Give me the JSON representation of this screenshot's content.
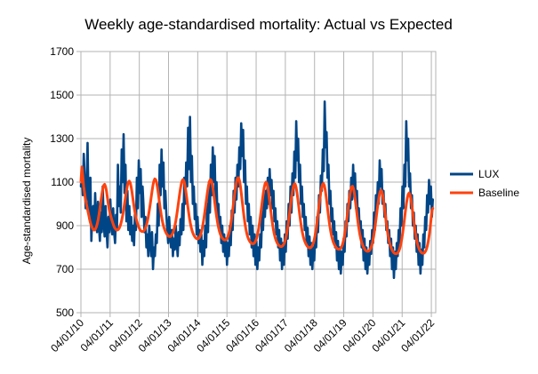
{
  "chart_data": {
    "type": "line",
    "title": "Weekly age-standardised mortality: Actual vs Expected",
    "xlabel": "",
    "ylabel": "Age-standardised mortality",
    "ylim": [
      500,
      1700
    ],
    "yticks": [
      500,
      700,
      900,
      1100,
      1300,
      1500,
      1700
    ],
    "xticks": [
      "04/01/10",
      "04/01/11",
      "04/01/12",
      "04/01/13",
      "04/01/14",
      "04/01/15",
      "04/01/16",
      "04/01/17",
      "04/01/18",
      "04/01/19",
      "04/01/20",
      "04/01/21",
      "04/01/22"
    ],
    "grid": true,
    "legend_position": "right",
    "series": [
      {
        "name": "LUX",
        "color": "#004586",
        "values": [
          1080,
          1150,
          1040,
          1230,
          1120,
          980,
          1060,
          1280,
          1010,
          930,
          1120,
          830,
          960,
          990,
          880,
          1050,
          930,
          870,
          1010,
          900,
          830,
          960,
          870,
          1080,
          920,
          850,
          990,
          880,
          800,
          940,
          870,
          1020,
          910,
          860,
          980,
          870,
          820,
          950,
          880,
          1180,
          990,
          1080,
          960,
          1250,
          1100,
          1320,
          1050,
          1180,
          920,
          1060,
          880,
          990,
          860,
          940,
          830,
          900,
          810,
          960,
          880,
          1120,
          980,
          1200,
          1050,
          1160,
          940,
          1080,
          990,
          870,
          940,
          800,
          860,
          760,
          900,
          830,
          760,
          870,
          700,
          800,
          760,
          860,
          820,
          1000,
          900,
          1180,
          1040,
          1250,
          1080,
          1190,
          980,
          1060,
          960,
          880,
          820,
          940,
          860,
          800,
          880,
          760,
          840,
          790,
          900,
          830,
          760,
          870,
          810,
          930,
          860,
          1000,
          880,
          1120,
          1000,
          1190,
          1080,
          1350,
          1160,
          1400,
          1100,
          1220,
          1000,
          1080,
          930,
          1000,
          860,
          940,
          820,
          880,
          780,
          860,
          720,
          830,
          760,
          900,
          800,
          1000,
          870,
          1100,
          960,
          1180,
          1040,
          1260,
          1100,
          1220,
          1000,
          1100,
          940,
          1000,
          880,
          940,
          820,
          900,
          780,
          860,
          760,
          840,
          720,
          820,
          760,
          900,
          810,
          970,
          880,
          1060,
          960,
          1120,
          1020,
          1180,
          1080,
          1260,
          1160,
          1370,
          1220,
          1340,
          1100,
          1200,
          1000,
          1080,
          920,
          1000,
          860,
          940,
          800,
          900,
          760,
          860,
          720,
          830,
          700,
          800,
          740,
          860,
          800,
          960,
          880,
          1040,
          940,
          1060,
          980,
          1120,
          1000,
          1160,
          1040,
          1110,
          980,
          1060,
          920,
          980,
          860,
          920,
          800,
          880,
          740,
          840,
          700,
          820,
          720,
          860,
          780,
          920,
          840,
          1000,
          900,
          1080,
          960,
          1140,
          1040,
          1240,
          1120,
          1380,
          1200,
          1300,
          1100,
          1180,
          1000,
          1080,
          940,
          1000,
          880,
          940,
          820,
          890,
          760,
          850,
          720,
          820,
          700,
          800,
          740,
          860,
          800,
          940,
          870,
          1040,
          960,
          1130,
          1060,
          1250,
          1150,
          1470,
          1260,
          1330,
          1120,
          1180,
          1000,
          1060,
          920,
          980,
          860,
          920,
          800,
          870,
          740,
          830,
          700,
          800,
          680,
          780,
          720,
          840,
          780,
          920,
          850,
          1000,
          920,
          1060,
          980,
          1120,
          1020,
          1180,
          1050,
          1140,
          980,
          1060,
          920,
          980,
          860,
          920,
          800,
          880,
          740,
          840,
          700,
          800,
          680,
          780,
          720,
          830,
          770,
          880,
          820,
          960,
          880,
          1040,
          960,
          1100,
          1000,
          1200,
          1080,
          1160,
          1000,
          1060,
          940,
          1000,
          880,
          920,
          820,
          880,
          760,
          840,
          700,
          800,
          660,
          780,
          700,
          820,
          760,
          880,
          820,
          980,
          900,
          1080,
          980,
          1180,
          1080,
          1380,
          1200,
          1300,
          1080,
          1140,
          980,
          1040,
          900,
          960,
          840,
          900,
          780,
          860,
          720,
          820,
          680,
          790,
          720,
          860,
          800,
          940,
          880,
          1040,
          960,
          1110,
          1000,
          1080,
          940,
          1020
        ]
      },
      {
        "name": "Baseline",
        "color": "#ff420e",
        "values": [
          1100,
          1170,
          1130,
          1080,
          1050,
          1020,
          1000,
          980,
          960,
          940,
          920,
          905,
          895,
          885,
          880,
          880,
          885,
          895,
          910,
          930,
          955,
          985,
          1015,
          1045,
          1070,
          1085,
          1090,
          1080,
          1060,
          1030,
          1000,
          975,
          955,
          940,
          925,
          912,
          900,
          890,
          885,
          880,
          880,
          882,
          888,
          898,
          912,
          930,
          952,
          978,
          1005,
          1035,
          1062,
          1085,
          1100,
          1105,
          1098,
          1080,
          1055,
          1025,
          995,
          968,
          945,
          925,
          910,
          898,
          888,
          880,
          875,
          873,
          873,
          876,
          882,
          892,
          905,
          922,
          944,
          970,
          998,
          1028,
          1058,
          1085,
          1105,
          1115,
          1112,
          1098,
          1075,
          1045,
          1012,
          980,
          952,
          928,
          908,
          892,
          880,
          870,
          862,
          856,
          852,
          850,
          850,
          853,
          859,
          868,
          881,
          898,
          920,
          946,
          975,
          1006,
          1037,
          1066,
          1090,
          1106,
          1112,
          1106,
          1088,
          1062,
          1030,
          997,
          965,
          936,
          912,
          892,
          876,
          864,
          855,
          848,
          843,
          840,
          839,
          841,
          846,
          855,
          868,
          886,
          909,
          936,
          966,
          998,
          1030,
          1060,
          1086,
          1104,
          1112,
          1108,
          1092,
          1066,
          1034,
          1000,
          967,
          937,
          911,
          890,
          873,
          860,
          850,
          843,
          838,
          835,
          834,
          835,
          839,
          847,
          859,
          876,
          898,
          925,
          956,
          990,
          1024,
          1057,
          1086,
          1108,
          1120,
          1120,
          1106,
          1080,
          1046,
          1009,
          972,
          938,
          908,
          883,
          863,
          848,
          837,
          829,
          823,
          819,
          817,
          817,
          819,
          824,
          833,
          846,
          864,
          887,
          915,
          947,
          981,
          1015,
          1047,
          1074,
          1093,
          1100,
          1094,
          1076,
          1048,
          1014,
          978,
          943,
          912,
          885,
          863,
          846,
          833,
          823,
          815,
          810,
          806,
          804,
          804,
          806,
          811,
          819,
          831,
          848,
          870,
          897,
          928,
          962,
          996,
          1029,
          1058,
          1080,
          1092,
          1091,
          1077,
          1052,
          1020,
          985,
          950,
          918,
          890,
          867,
          848,
          834,
          823,
          814,
          807,
          802,
          799,
          798,
          799,
          803,
          810,
          821,
          837,
          858,
          884,
          915,
          949,
          984,
          1018,
          1049,
          1074,
          1090,
          1094,
          1085,
          1064,
          1034,
          999,
          963,
          929,
          899,
          873,
          852,
          836,
          823,
          813,
          805,
          799,
          795,
          792,
          791,
          792,
          796,
          803,
          814,
          830,
          851,
          877,
          908,
          942,
          977,
          1011,
          1041,
          1065,
          1079,
          1081,
          1070,
          1047,
          1016,
          981,
          946,
          913,
          884,
          859,
          839,
          823,
          811,
          801,
          794,
          788,
          784,
          782,
          782,
          784,
          789,
          797,
          809,
          826,
          848,
          875,
          906,
          940,
          974,
          1006,
          1034,
          1054,
          1063,
          1058,
          1041,
          1014,
          981,
          946,
          912,
          881,
          854,
          832,
          815,
          801,
          791,
          783,
          777,
          773,
          771,
          771,
          773,
          778,
          786,
          799,
          817,
          840,
          868,
          900,
          934,
          968,
          1000,
          1026,
          1044,
          1050,
          1042,
          1022,
          993,
          959,
          924,
          891,
          862,
          838,
          819,
          804,
          793,
          785,
          779,
          775,
          773,
          773,
          776,
          782,
          792,
          807,
          828,
          855,
          888,
          926,
          968,
          980
        ]
      }
    ]
  }
}
